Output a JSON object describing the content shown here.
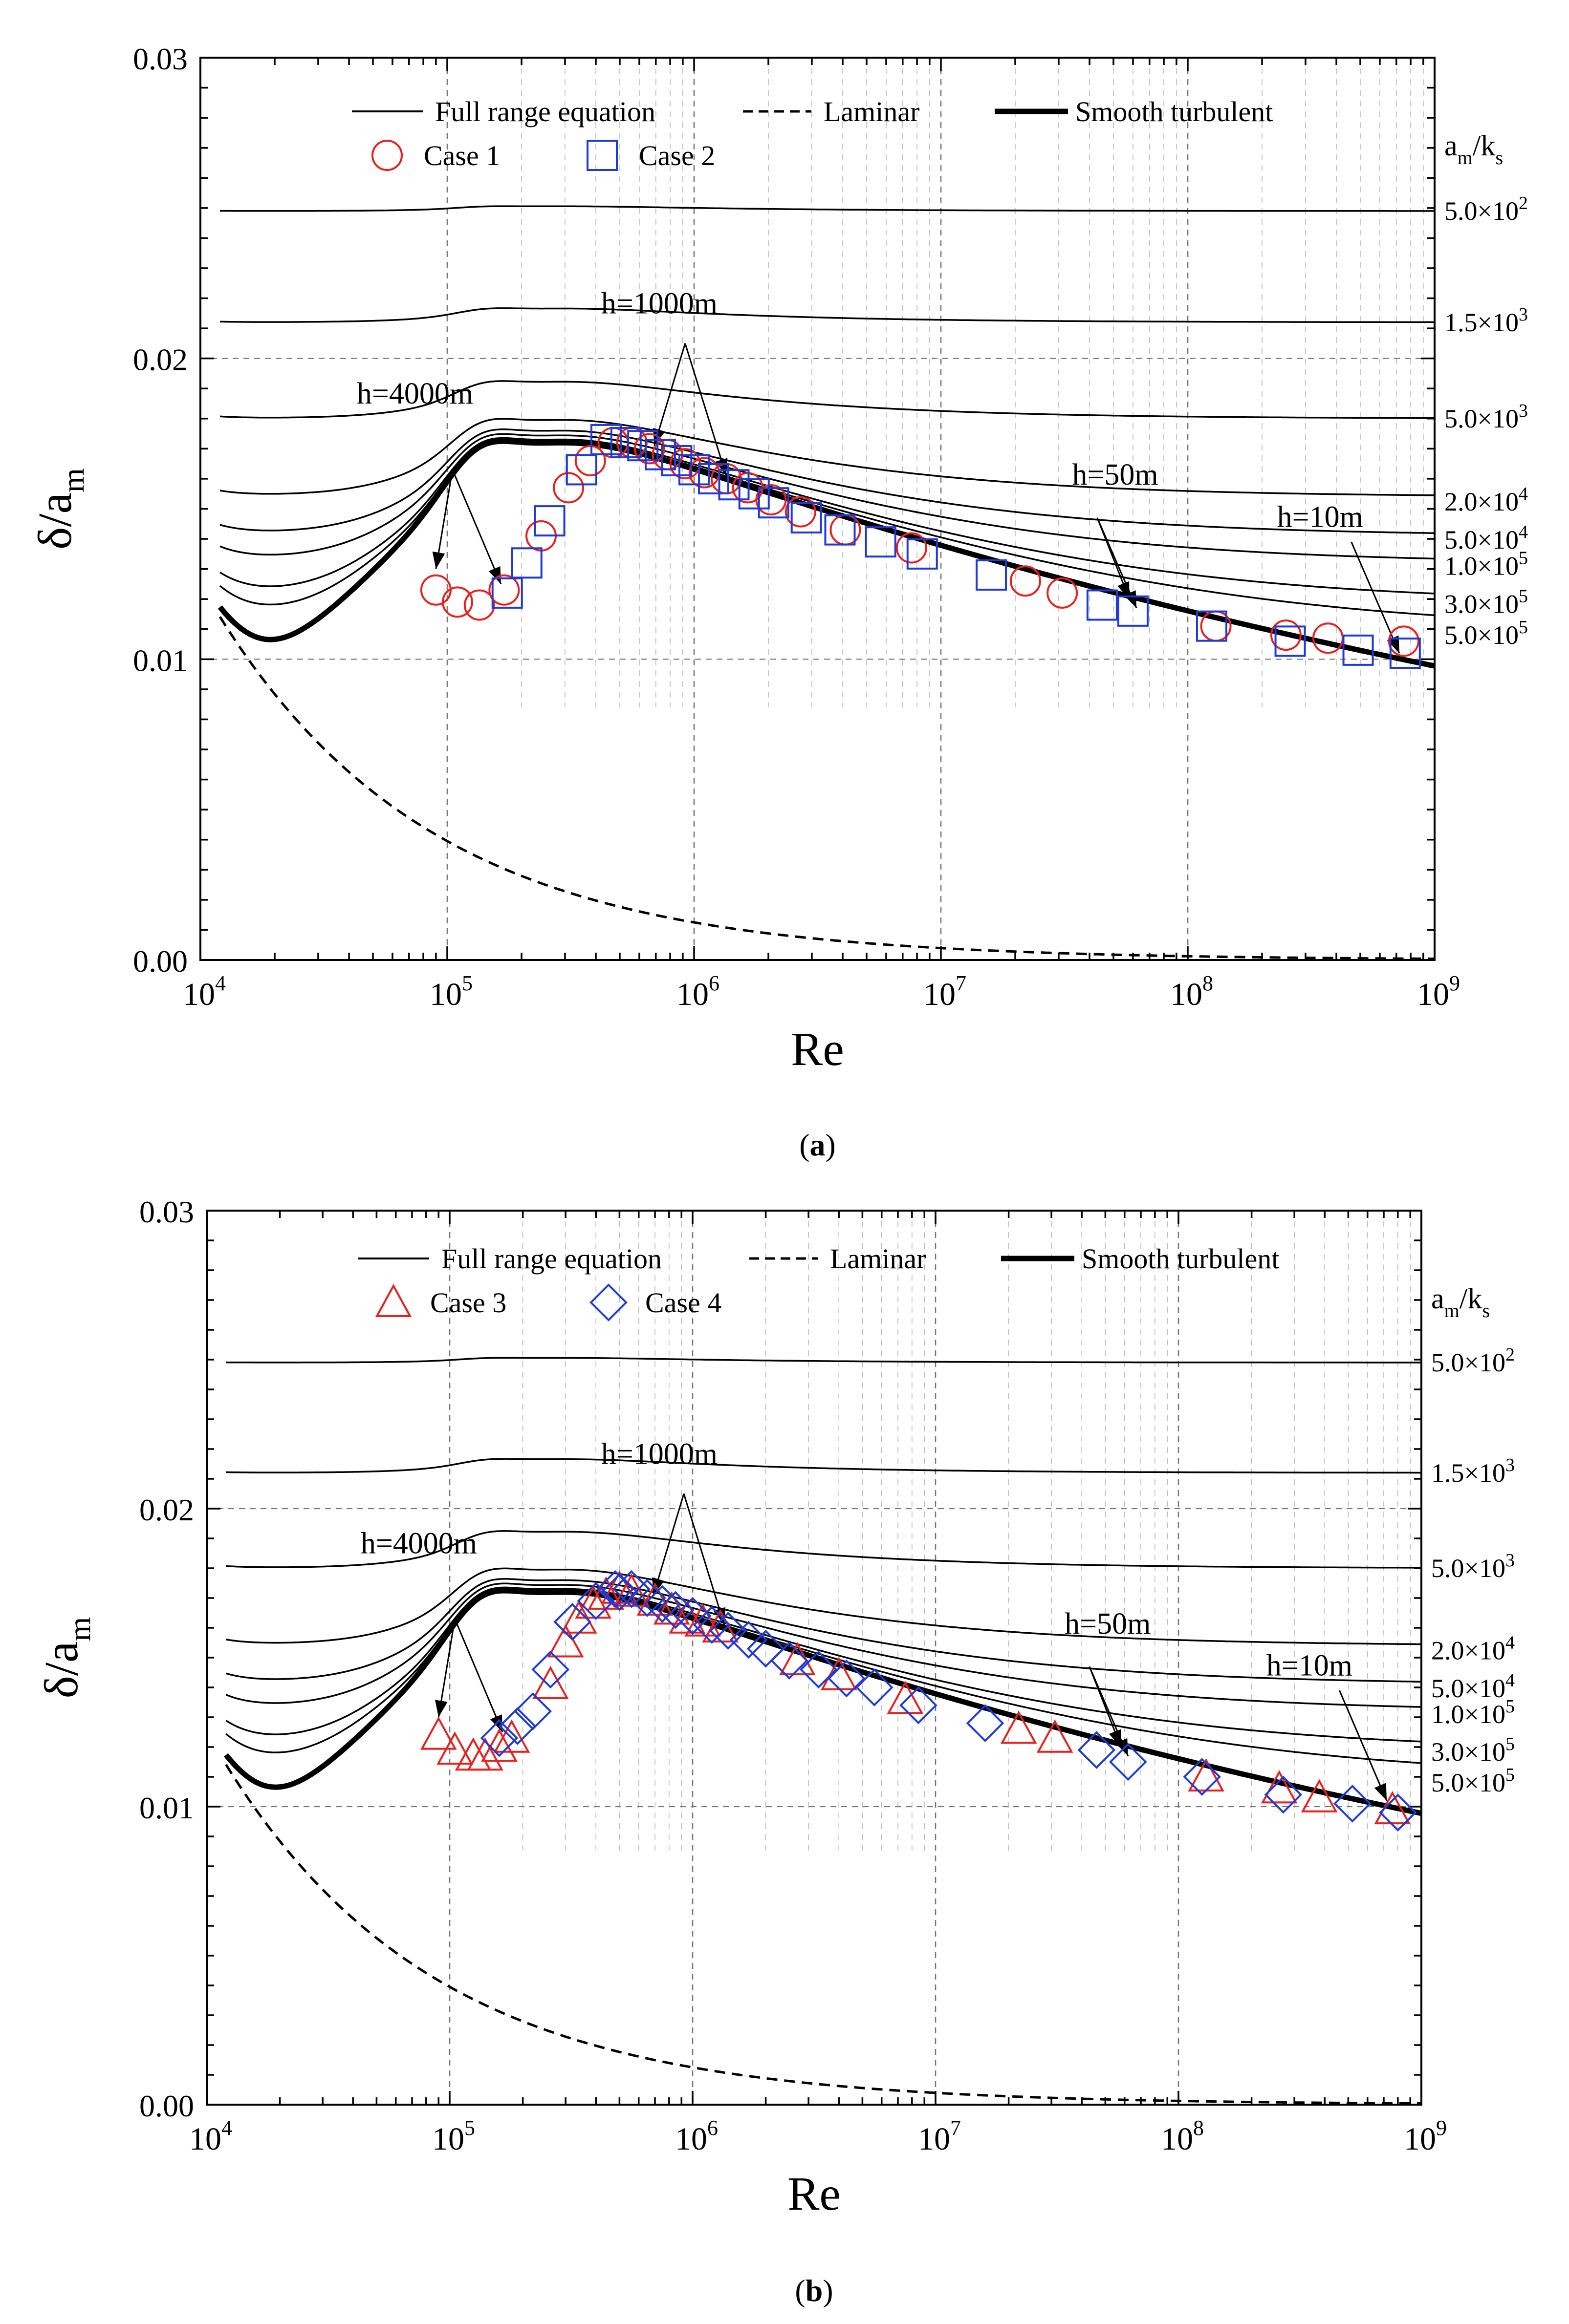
{
  "chart_data": [
    {
      "type": "line",
      "panel_caption": "a",
      "xlabel": "Re",
      "ylabel_main": "δ/a",
      "ylabel_sub": "m",
      "xscale": "log",
      "xlim": [
        10000,
        1000000000
      ],
      "ylim": [
        0,
        0.03
      ],
      "x_ticks": [
        {
          "base": "10",
          "exp": "4"
        },
        {
          "base": "10",
          "exp": "5"
        },
        {
          "base": "10",
          "exp": "6"
        },
        {
          "base": "10",
          "exp": "7"
        },
        {
          "base": "10",
          "exp": "8"
        },
        {
          "base": "10",
          "exp": "9"
        }
      ],
      "y_ticks": [
        "0.00",
        "0.01",
        "0.02",
        "0.03"
      ],
      "grid": "dashed at major and minor ticks, upper right region",
      "legend": {
        "placement": "top",
        "line_entries": [
          "Full range equation",
          "Laminar",
          "Smooth turbulent"
        ],
        "marker_entries": [
          {
            "label": "Case 1",
            "marker": "circle",
            "color": "#e8211c"
          },
          {
            "label": "Case 2",
            "marker": "square",
            "color": "#1f3bd6"
          }
        ]
      },
      "right_axis_title": {
        "main": "a",
        "sub1": "m",
        "slash": "/k",
        "sub2": "s"
      },
      "curve_labels": [
        {
          "mant": "5.0×10",
          "exp": "2",
          "plateau": 0.0249
        },
        {
          "mant": "1.5×10",
          "exp": "3",
          "plateau": 0.0212
        },
        {
          "mant": "5.0×10",
          "exp": "3",
          "plateau": 0.018
        },
        {
          "mant": "2.0×10",
          "exp": "4",
          "plateau": 0.0154
        },
        {
          "mant": "5.0×10",
          "exp": "4",
          "plateau": 0.0141
        },
        {
          "mant": "1.0×10",
          "exp": "5",
          "plateau": 0.0132
        },
        {
          "mant": "3.0×10",
          "exp": "5",
          "plateau": 0.0119
        },
        {
          "mant": "5.0×10",
          "exp": "5",
          "plateau": 0.011
        }
      ],
      "annotations": [
        "h=4000m",
        "h=1000m",
        "h=50m",
        "h=10m"
      ],
      "series": [
        {
          "name": "Case 1",
          "x": [
            90000,
            110000,
            135000,
            170000,
            240000,
            310000,
            380000,
            470000,
            560000,
            660000,
            780000,
            920000,
            1100000,
            1350000,
            1650000,
            2050000,
            2700000,
            4100000,
            7600000,
            22000000,
            31000000,
            130000000,
            250000000,
            370000000,
            750000000
          ],
          "y": [
            0.0123,
            0.0119,
            0.0118,
            0.0123,
            0.0141,
            0.0157,
            0.0166,
            0.0172,
            0.0172,
            0.017,
            0.0168,
            0.0165,
            0.0162,
            0.016,
            0.0157,
            0.0153,
            0.0149,
            0.0143,
            0.0137,
            0.0126,
            0.0122,
            0.0111,
            0.0108,
            0.0107,
            0.0106
          ]
        },
        {
          "name": "Case 2",
          "x": [
            175000,
            210000,
            260000,
            350000,
            440000,
            530000,
            620000,
            730000,
            850000,
            1000000,
            1200000,
            1450000,
            1750000,
            2100000,
            2850000,
            3900000,
            5700000,
            8400000,
            16000000,
            45000000,
            60000000,
            125000000,
            260000000,
            490000000,
            760000000
          ],
          "y": [
            0.0122,
            0.0132,
            0.0146,
            0.0163,
            0.0173,
            0.0172,
            0.0171,
            0.0168,
            0.0166,
            0.0163,
            0.016,
            0.0158,
            0.0155,
            0.0152,
            0.0147,
            0.0143,
            0.0139,
            0.0135,
            0.0128,
            0.0118,
            0.0116,
            0.0111,
            0.0106,
            0.0103,
            0.0102
          ]
        }
      ]
    },
    {
      "type": "line",
      "panel_caption": "b",
      "xlabel": "Re",
      "ylabel_main": "δ/a",
      "ylabel_sub": "m",
      "xscale": "log",
      "xlim": [
        10000,
        1000000000
      ],
      "ylim": [
        0,
        0.03
      ],
      "x_ticks": [
        {
          "base": "10",
          "exp": "4"
        },
        {
          "base": "10",
          "exp": "5"
        },
        {
          "base": "10",
          "exp": "6"
        },
        {
          "base": "10",
          "exp": "7"
        },
        {
          "base": "10",
          "exp": "8"
        },
        {
          "base": "10",
          "exp": "9"
        }
      ],
      "y_ticks": [
        "0.00",
        "0.01",
        "0.02",
        "0.03"
      ],
      "grid": "dashed at major and minor ticks, upper right region",
      "legend": {
        "placement": "top",
        "line_entries": [
          "Full range equation",
          "Laminar",
          "Smooth turbulent"
        ],
        "marker_entries": [
          {
            "label": "Case 3",
            "marker": "triangle",
            "color": "#e8211c"
          },
          {
            "label": "Case 4",
            "marker": "diamond",
            "color": "#1f3bd6"
          }
        ]
      },
      "right_axis_title": {
        "main": "a",
        "sub1": "m",
        "slash": "/k",
        "sub2": "s"
      },
      "curve_labels": [
        {
          "mant": "5.0×10",
          "exp": "2",
          "plateau": 0.0249
        },
        {
          "mant": "1.5×10",
          "exp": "3",
          "plateau": 0.0212
        },
        {
          "mant": "5.0×10",
          "exp": "3",
          "plateau": 0.018
        },
        {
          "mant": "2.0×10",
          "exp": "4",
          "plateau": 0.0154
        },
        {
          "mant": "5.0×10",
          "exp": "4",
          "plateau": 0.0141
        },
        {
          "mant": "1.0×10",
          "exp": "5",
          "plateau": 0.0132
        },
        {
          "mant": "3.0×10",
          "exp": "5",
          "plateau": 0.0119
        },
        {
          "mant": "5.0×10",
          "exp": "5",
          "plateau": 0.011
        }
      ],
      "annotations": [
        "h=4000m",
        "h=1000m",
        "h=50m",
        "h=10m"
      ],
      "series": [
        {
          "name": "Case 3",
          "x": [
            90000,
            105000,
            125000,
            140000,
            160000,
            180000,
            260000,
            300000,
            340000,
            390000,
            440000,
            500000,
            560000,
            700000,
            820000,
            950000,
            1100000,
            1300000,
            2700000,
            4000000,
            7500000,
            22000000,
            31000000,
            130000000,
            260000000,
            380000000,
            760000000
          ],
          "y": [
            0.0124,
            0.0119,
            0.0117,
            0.0117,
            0.012,
            0.0123,
            0.0141,
            0.0155,
            0.0163,
            0.0168,
            0.0171,
            0.0173,
            0.0172,
            0.0169,
            0.0166,
            0.0163,
            0.0162,
            0.016,
            0.0149,
            0.0144,
            0.0136,
            0.0126,
            0.0123,
            0.011,
            0.0106,
            0.0103,
            0.0099
          ]
        },
        {
          "name": "Case 4",
          "x": [
            160000,
            190000,
            220000,
            260000,
            320000,
            400000,
            480000,
            560000,
            650000,
            750000,
            850000,
            1000000,
            1200000,
            1400000,
            1700000,
            2000000,
            2500000,
            3300000,
            4300000,
            5600000,
            8500000,
            16000000,
            46000000,
            62000000,
            125000000,
            270000000,
            500000,
            520000000,
            800000000
          ],
          "y": [
            0.0123,
            0.0127,
            0.0132,
            0.0146,
            0.0162,
            0.0169,
            0.0173,
            0.0173,
            0.017,
            0.0168,
            0.0166,
            0.0164,
            0.0161,
            0.0159,
            0.0156,
            0.0153,
            0.0149,
            0.0146,
            0.0143,
            0.014,
            0.0134,
            0.0128,
            0.0119,
            0.0115,
            0.011,
            0.0104,
            0.0172,
            0.0101,
            0.0098
          ]
        }
      ]
    }
  ]
}
